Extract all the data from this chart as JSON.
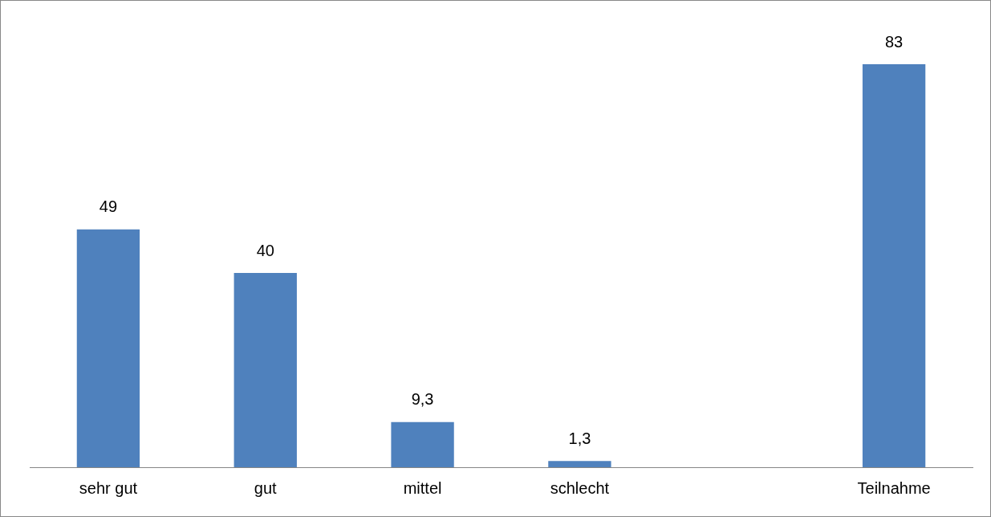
{
  "chart_data": {
    "type": "bar",
    "categories": [
      "sehr gut",
      "gut",
      "mittel",
      "schlecht",
      null,
      "Teilnahme"
    ],
    "values": [
      49,
      40,
      9.3,
      1.3,
      null,
      83
    ],
    "value_labels": [
      "49",
      "40",
      "9,3",
      "1,3",
      null,
      "83"
    ],
    "color": "#4f81bd",
    "grid": false,
    "legend": false
  }
}
